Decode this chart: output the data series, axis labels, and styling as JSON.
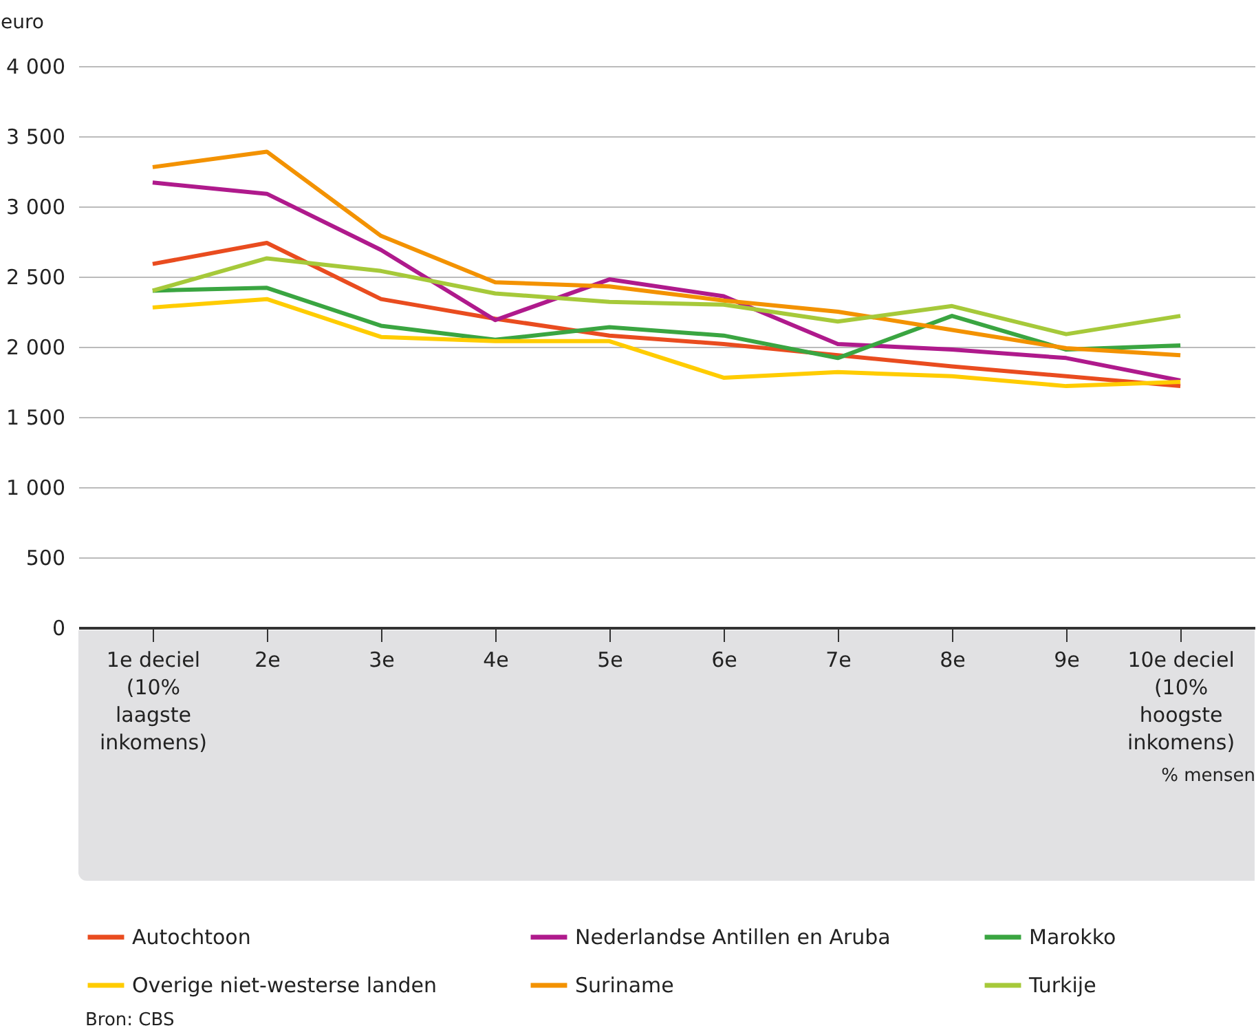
{
  "chart_data": {
    "type": "line",
    "ylabel": "euro",
    "xlabel": "% mensen",
    "categories": [
      "1e deciel (10% laagste inkomens)",
      "2e",
      "3e",
      "4e",
      "5e",
      "6e",
      "7e",
      "8e",
      "9e",
      "10e deciel (10% hoogste inkomens)"
    ],
    "series": [
      {
        "name": "Autochtoon",
        "color": "#e94c1f",
        "values": [
          2590,
          2740,
          2340,
          2200,
          2080,
          2020,
          1940,
          1860,
          1790,
          1720
        ]
      },
      {
        "name": "Nederlandse Antillen en Aruba",
        "color": "#af1a8c",
        "values": [
          3170,
          3090,
          2690,
          2190,
          2480,
          2360,
          2020,
          1980,
          1920,
          1760
        ]
      },
      {
        "name": "Marokko",
        "color": "#3aa541",
        "values": [
          2400,
          2420,
          2150,
          2050,
          2140,
          2080,
          1920,
          2220,
          1980,
          2010
        ]
      },
      {
        "name": "Overige niet-westerse landen",
        "color": "#ffcc00",
        "values": [
          2280,
          2340,
          2070,
          2040,
          2040,
          1780,
          1820,
          1790,
          1720,
          1750
        ]
      },
      {
        "name": "Suriname",
        "color": "#f39200",
        "values": [
          3280,
          3390,
          2790,
          2460,
          2430,
          2330,
          2250,
          2120,
          1990,
          1940
        ]
      },
      {
        "name": "Turkije",
        "color": "#a6c93a",
        "values": [
          2400,
          2630,
          2540,
          2380,
          2320,
          2300,
          2180,
          2290,
          2090,
          2220
        ]
      }
    ],
    "ylim": [
      0,
      4000
    ],
    "yticks": [
      {
        "value": 0,
        "label": "0"
      },
      {
        "value": 500,
        "label": "500"
      },
      {
        "value": 1000,
        "label": "1 000"
      },
      {
        "value": 1500,
        "label": "1 500"
      },
      {
        "value": 2000,
        "label": "2 000"
      },
      {
        "value": 2500,
        "label": "2 500"
      },
      {
        "value": 3000,
        "label": "3 000"
      },
      {
        "value": 3500,
        "label": "3 500"
      },
      {
        "value": 4000,
        "label": "4 000"
      }
    ],
    "grid": "y",
    "legend": "bottom",
    "line_style": "solid",
    "marker": "none",
    "annotations": [
      "Bron: CBS"
    ]
  }
}
